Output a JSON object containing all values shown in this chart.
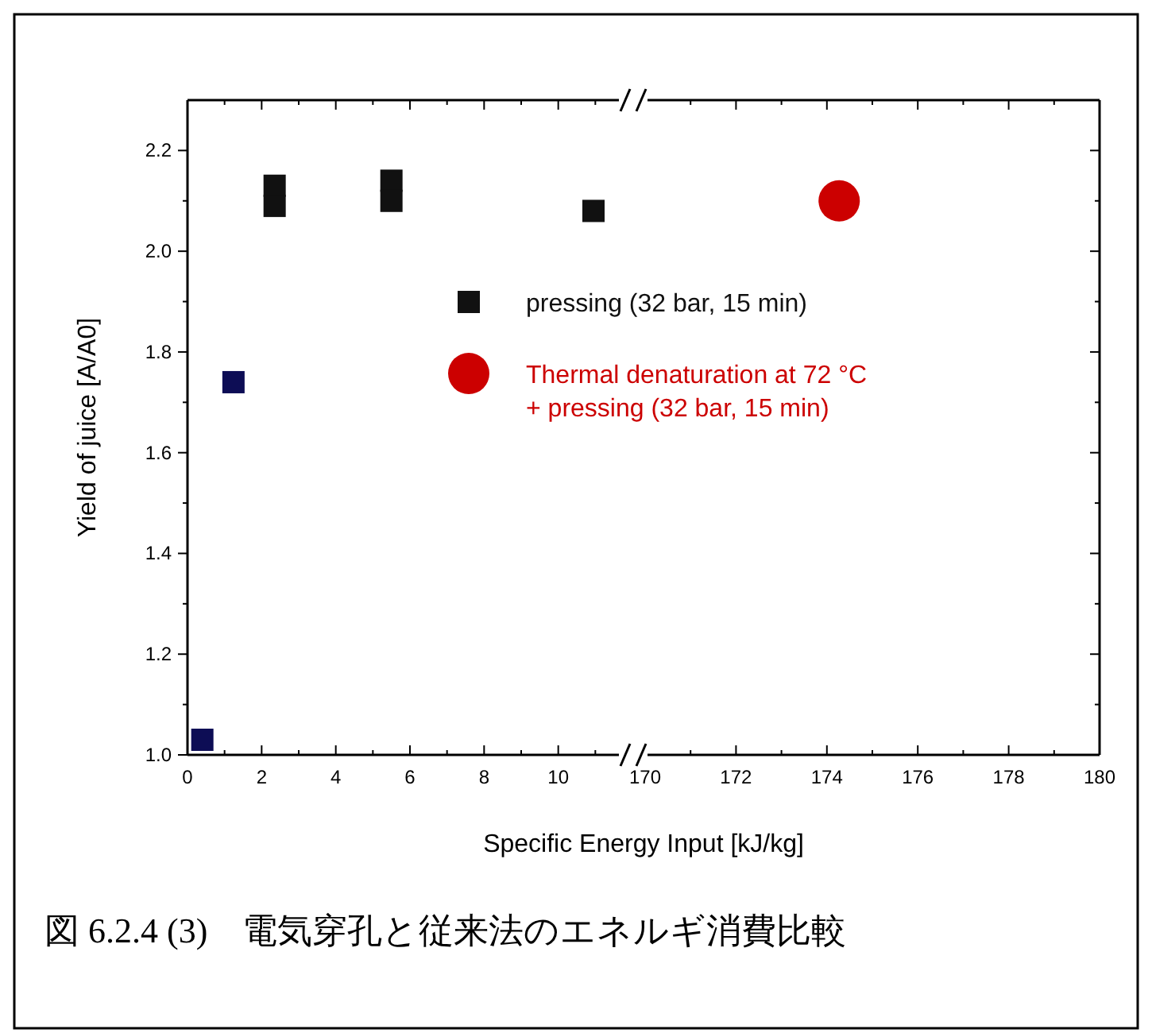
{
  "chart_data": [
    {
      "type": "scatter",
      "xlabel": "Specific Energy Input [kJ/kg]",
      "ylabel": "Yield of juice [A/A0]",
      "annotations": [
        "図 6.2.4 (3)　電気穿孔と従来法のエネルギ消費比較"
      ],
      "xlim": [
        0,
        11.7
      ],
      "ylim": [
        1,
        2.3
      ],
      "xticks": [
        0,
        {
          "value": 1,
          "label": null
        },
        2,
        {
          "value": 3,
          "label": null
        },
        4,
        {
          "value": 5,
          "label": null
        },
        6,
        {
          "value": 7,
          "label": null
        },
        8,
        {
          "value": 9,
          "label": null
        },
        10,
        {
          "value": 11,
          "label": null
        }
      ],
      "yticks": [
        {
          "value": 1,
          "label": "1.0"
        },
        {
          "value": 1.1,
          "label": null
        },
        1.2,
        {
          "value": 1.3,
          "label": null
        },
        1.4,
        {
          "value": 1.5,
          "label": null
        },
        1.6,
        {
          "value": 1.7,
          "label": null
        },
        1.8,
        {
          "value": 1.9,
          "label": null
        },
        {
          "value": 2,
          "label": "2.0"
        },
        {
          "value": 2.1,
          "label": null
        },
        2.2
      ],
      "marker": "square",
      "legend": "right",
      "series": [
        {
          "name": "pressing (32 bar, 15 min)",
          "color": "#111111",
          "x": [
            0.4,
            1.24,
            2.35,
            2.35,
            5.5,
            5.5,
            10.95
          ],
          "values": [
            1.03,
            1.74,
            2.13,
            2.09,
            2.14,
            2.1,
            2.08
          ],
          "colors": [
            "#0d0d55",
            "#0d0d55",
            "#111111",
            "#111111",
            "#111111",
            "#111111",
            "#111111"
          ]
        }
      ]
    },
    {
      "type": "scatter",
      "xlim": [
        170,
        180
      ],
      "ylim": [
        1,
        2.3
      ],
      "tick_labels": "x",
      "xticks": [
        170,
        {
          "value": 171,
          "label": null
        },
        172,
        {
          "value": 173,
          "label": null
        },
        174,
        {
          "value": 175,
          "label": null
        },
        176,
        {
          "value": 177,
          "label": null
        },
        178,
        {
          "value": 179,
          "label": null
        },
        180
      ],
      "yticks": [
        {
          "value": 1,
          "label": null
        },
        {
          "value": 1.1,
          "label": null
        },
        {
          "value": 1.2,
          "label": null
        },
        {
          "value": 1.3,
          "label": null
        },
        {
          "value": 1.4,
          "label": null
        },
        {
          "value": 1.5,
          "label": null
        },
        {
          "value": 1.6,
          "label": null
        },
        {
          "value": 1.7,
          "label": null
        },
        {
          "value": 1.8,
          "label": null
        },
        {
          "value": 1.9,
          "label": null
        },
        {
          "value": 2,
          "label": null
        },
        {
          "value": 2.1,
          "label": null
        },
        {
          "value": 2.2,
          "label": null
        }
      ],
      "marker": "circle",
      "legend": "top left",
      "series": [
        {
          "name": "Thermal denaturation at 72 °C + pressing (32 bar, 15 min)",
          "color": "#cc0000",
          "x": [
            174.27
          ],
          "values": [
            2.1
          ]
        }
      ]
    }
  ]
}
